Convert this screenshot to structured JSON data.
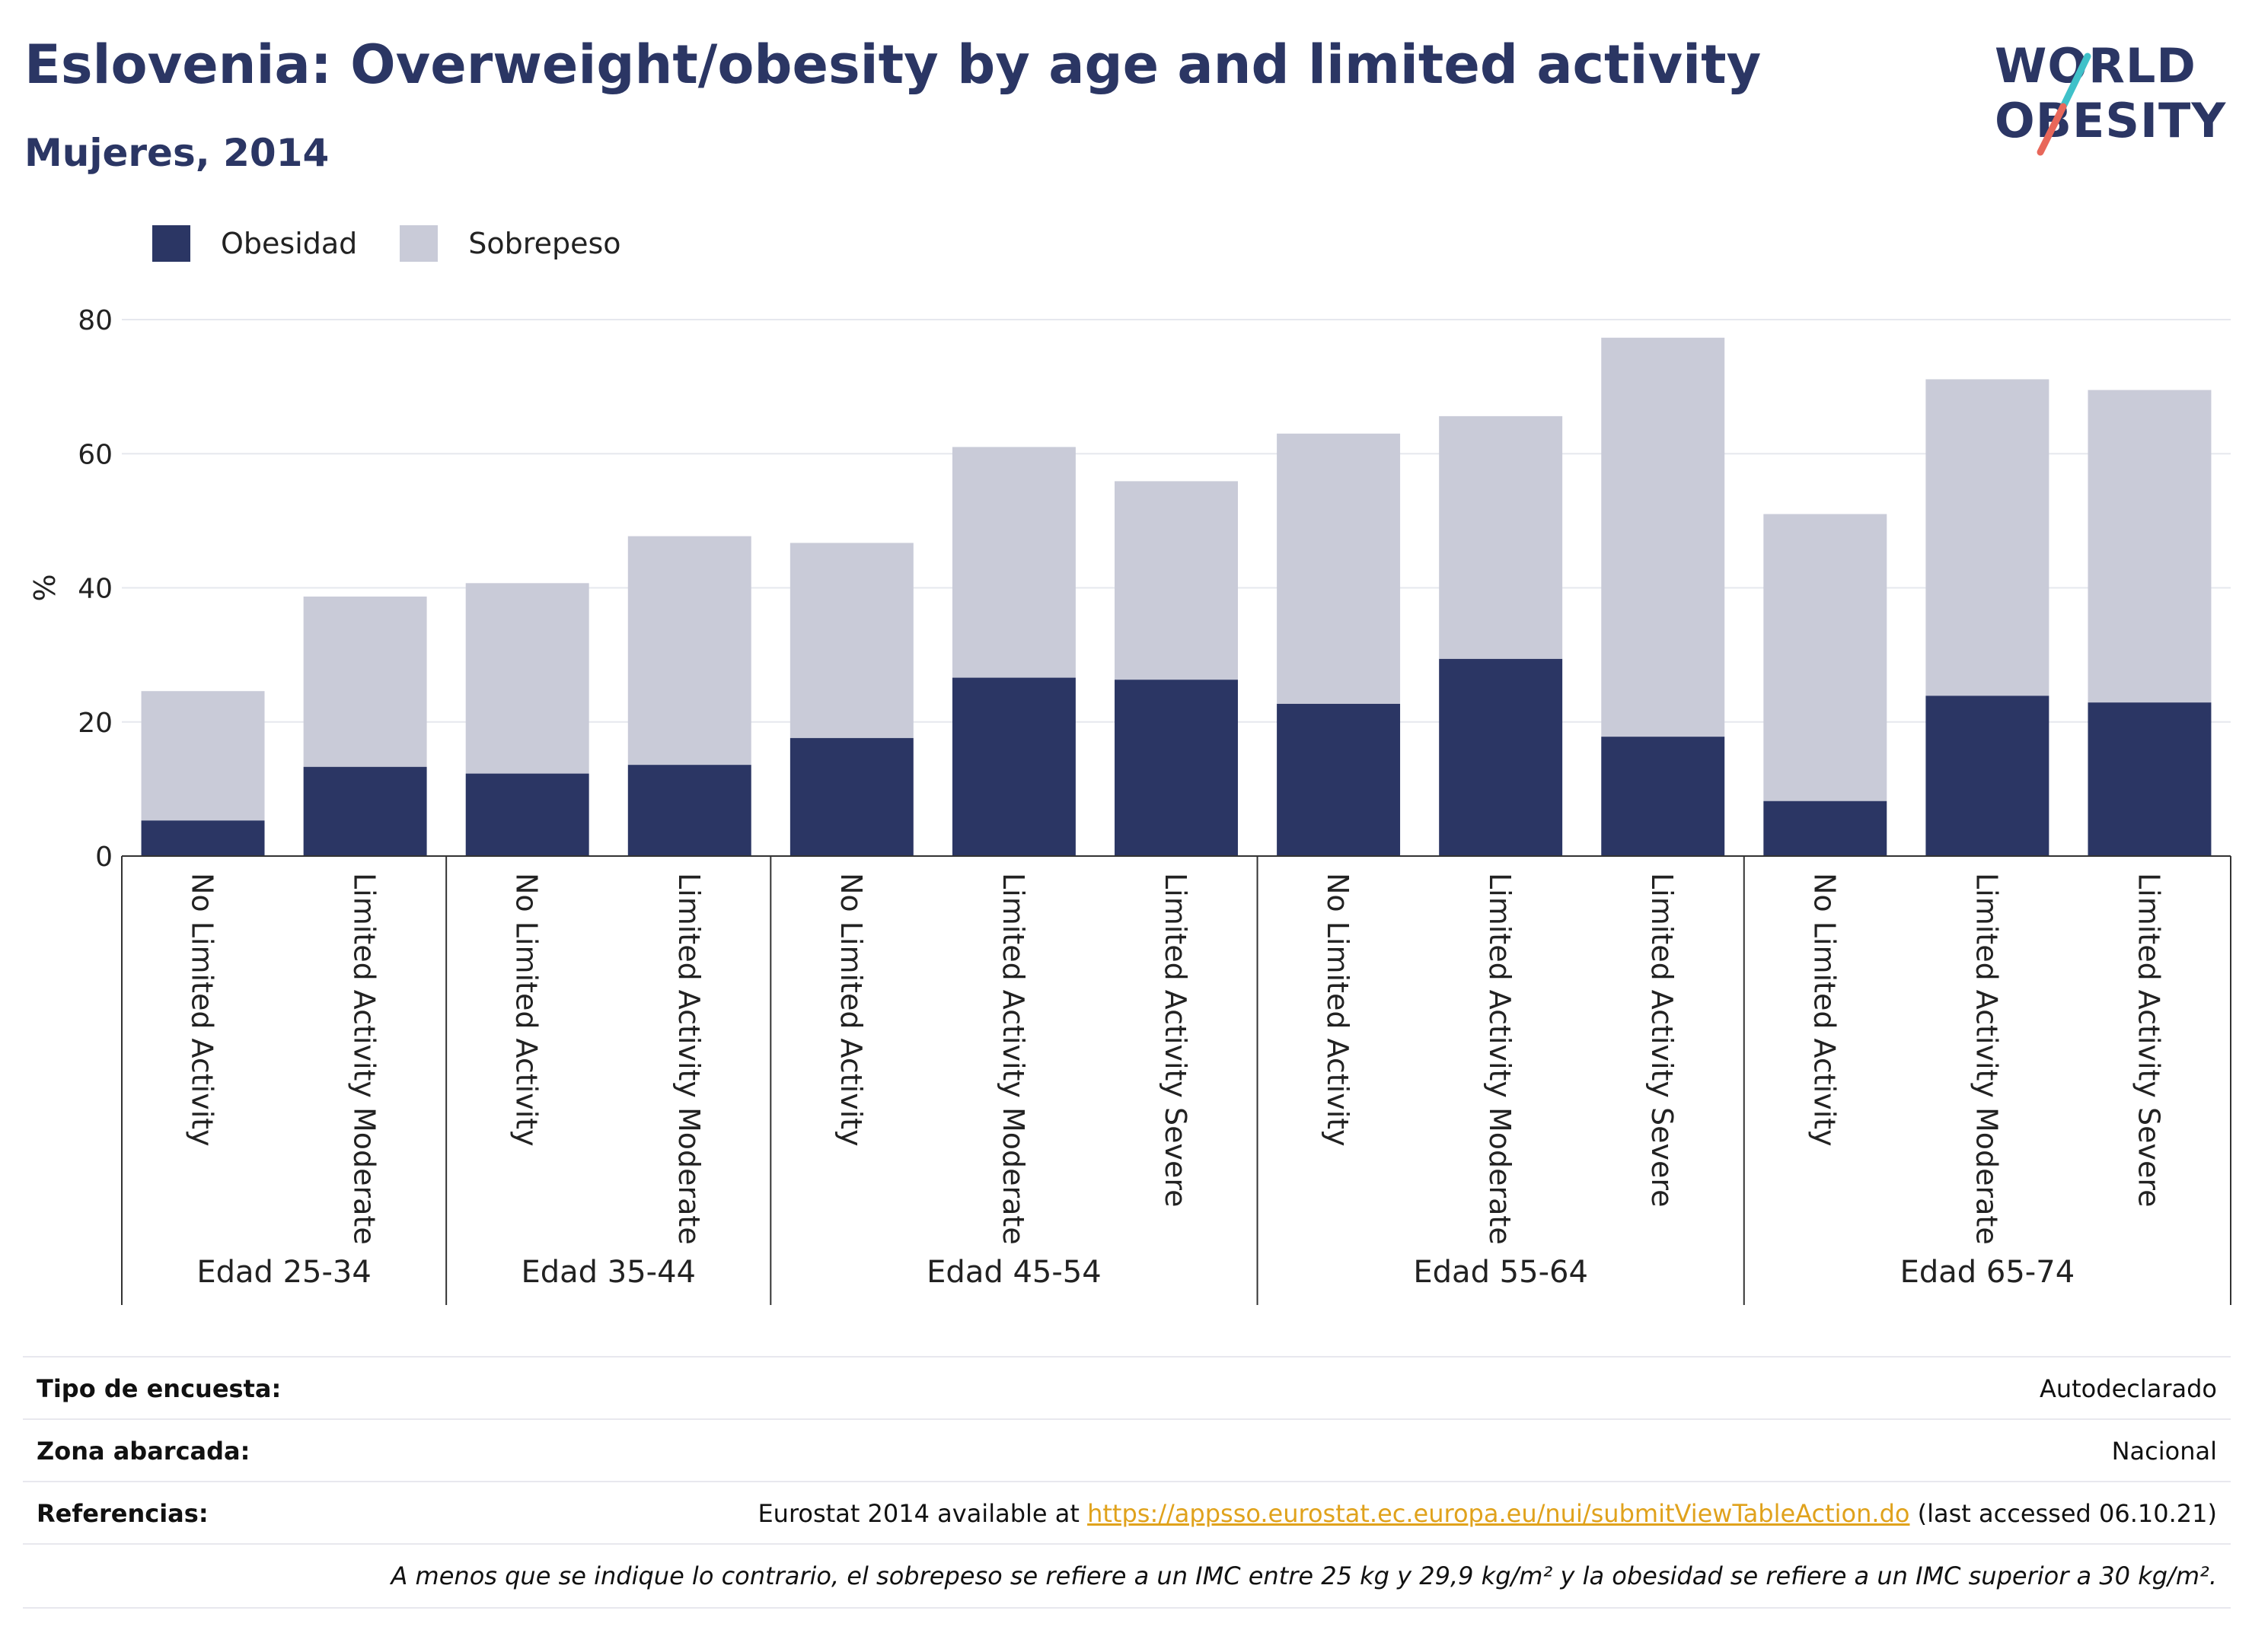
{
  "header": {
    "title": "Eslovenia: Overweight/obesity by age and limited activity",
    "subtitle": "Mujeres, 2014",
    "logo_line1": "WORLD",
    "logo_line2": "OBESITY"
  },
  "colors": {
    "obesity": "#2b3664",
    "overweight": "#c9cbd8",
    "accent_teal": "#3fc1c9",
    "accent_red": "#e8675a"
  },
  "chart_data": {
    "type": "bar",
    "stacked": true,
    "ylabel": "%",
    "ylim": [
      0,
      80
    ],
    "yticks": [
      0,
      20,
      40,
      60,
      80
    ],
    "grid": true,
    "legend_position": "top-left",
    "groups": [
      {
        "label": "Edad 25-34",
        "categories": [
          "No Limited Activity",
          "Limited Activity Moderate"
        ]
      },
      {
        "label": "Edad 35-44",
        "categories": [
          "No Limited Activity",
          "Limited Activity Moderate"
        ]
      },
      {
        "label": "Edad 45-54",
        "categories": [
          "No Limited Activity",
          "Limited Activity Moderate",
          "Limited Activity Severe"
        ]
      },
      {
        "label": "Edad 55-64",
        "categories": [
          "No Limited Activity",
          "Limited Activity Moderate",
          "Limited Activity Severe"
        ]
      },
      {
        "label": "Edad 65-74",
        "categories": [
          "No Limited Activity",
          "Limited Activity Moderate",
          "Limited Activity Severe"
        ]
      }
    ],
    "series": [
      {
        "name": "Obesidad",
        "values": [
          5.3,
          13.3,
          12.3,
          13.6,
          17.6,
          26.6,
          26.3,
          22.7,
          29.4,
          17.8,
          8.2,
          23.9,
          22.9
        ]
      },
      {
        "name": "Sobrepeso",
        "values": [
          19.3,
          25.4,
          28.4,
          34.1,
          29.1,
          34.4,
          29.6,
          40.3,
          36.2,
          59.5,
          42.8,
          47.2,
          46.6
        ]
      }
    ]
  },
  "info": {
    "survey_label": "Tipo de encuesta:",
    "survey_value": "Autodeclarado",
    "area_label": "Zona abarcada:",
    "area_value": "Nacional",
    "refs_label": "Referencias:",
    "refs_prefix": "Eurostat 2014 available at ",
    "refs_link": "https://appsso.eurostat.ec.europa.eu/nui/submitViewTableAction.do",
    "refs_suffix": " (last accessed 06.10.21)",
    "note": "A menos que se indique lo contrario, el sobrepeso se refiere a un IMC entre 25 kg y 29,9 kg/m² y la obesidad se refiere a un IMC superior a 30 kg/m²."
  }
}
